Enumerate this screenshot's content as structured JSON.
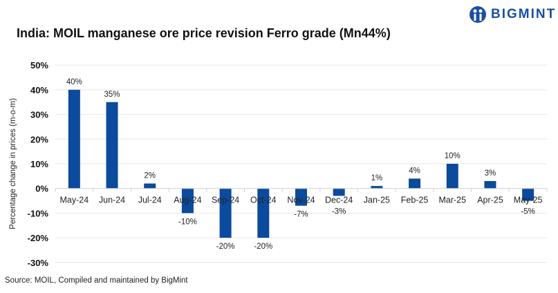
{
  "title": "India: MOIL manganese ore price revision Ferro grade (Mn44%)",
  "source": "Source: MOIL, Compiled and maintained by BigMint",
  "logo": "BIGMINT",
  "colors": {
    "bar": "#0b4a9c",
    "grid": "#e6e6e6",
    "brand": "#1a4fa3"
  },
  "chart_data": {
    "type": "bar",
    "title": "India: MOIL manganese ore price revision Ferro grade (Mn44%)",
    "xlabel": "",
    "ylabel": "Percentage change in prices (m-o-m)",
    "ylim": [
      -30,
      50
    ],
    "yticks": [
      50,
      40,
      30,
      20,
      10,
      0,
      -10,
      -20,
      -30
    ],
    "ytick_labels": [
      "50%",
      "40%",
      "30%",
      "20%",
      "10%",
      "0%",
      "-10%",
      "-20%",
      "-30%"
    ],
    "grid": true,
    "categories": [
      "May-24",
      "Jun-24",
      "Jul-24",
      "Aug-24",
      "Sep-24",
      "Oct-24",
      "Nov-24",
      "Dec-24",
      "Jan-25",
      "Feb-25",
      "Mar-25",
      "Apr-25",
      "May-25"
    ],
    "values": [
      40,
      35,
      2,
      -10,
      -20,
      -20,
      -7,
      -3,
      1,
      4,
      10,
      3,
      -5
    ],
    "data_labels": [
      "40%",
      "35%",
      "2%",
      "-10%",
      "-20%",
      "-20%",
      "-7%",
      "-3%",
      "1%",
      "4%",
      "10%",
      "3%",
      "-5%"
    ]
  }
}
